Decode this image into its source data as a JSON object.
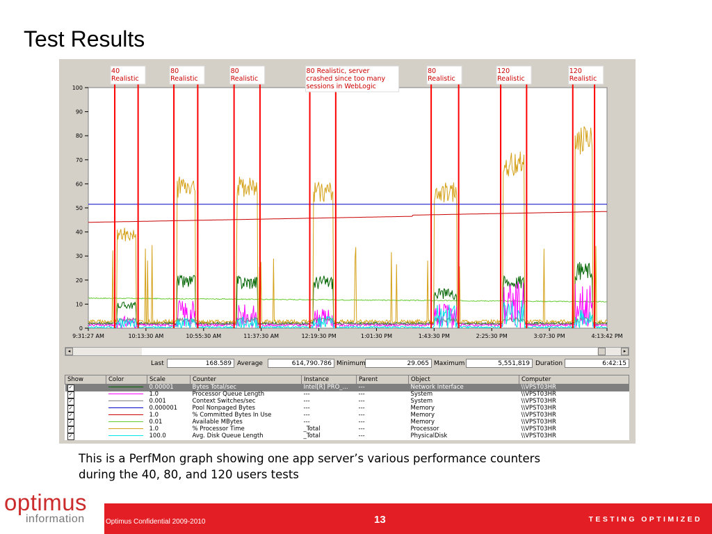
{
  "slide": {
    "title": "Test Results",
    "caption_line1": "This is a PerfMon graph showing one app server’s various performance counters",
    "caption_line2": "during the 40, 80, and 120 users tests"
  },
  "footer": {
    "logo_line1": "optimus",
    "logo_line2": "information",
    "confidential": "Optimus Confidential 2009-2010",
    "page": "13",
    "tagline": "TESTING OPTIMIZED",
    "bar_color": "#e31f25",
    "logo_color": "#cc2b2b"
  },
  "chart_data": {
    "type": "line",
    "ylim": [
      0,
      100
    ],
    "yticks": [
      0,
      10,
      20,
      30,
      40,
      50,
      60,
      70,
      80,
      90,
      100
    ],
    "xticks": [
      "9:31:27 AM",
      "10:13:30 AM",
      "10:55:30 AM",
      "11:37:30 AM",
      "12:19:30 PM",
      "1:01:30 PM",
      "1:43:30 PM",
      "2:25:30 PM",
      "3:07:30 PM",
      "4:13:42 PM"
    ],
    "annotations": [
      {
        "text": "40\nRealistic"
      },
      {
        "text": "80\nRealistic"
      },
      {
        "text": "80\nRealistic"
      },
      {
        "text": "80 Realistic, server\ncrashed since too many\nsessions in WebLogic"
      },
      {
        "text": "80\nRealistic"
      },
      {
        "text": "120\nRealistic"
      },
      {
        "text": "120\nRealistic"
      }
    ],
    "marker_pairs": [
      [
        0.051,
        0.096
      ],
      [
        0.165,
        0.211
      ],
      [
        0.281,
        0.331
      ],
      [
        0.427,
        0.477
      ],
      [
        0.661,
        0.714
      ],
      [
        0.795,
        0.845
      ],
      [
        0.934,
        0.976
      ]
    ],
    "test_windows": [
      [
        0.055,
        0.092
      ],
      [
        0.171,
        0.206
      ],
      [
        0.287,
        0.326
      ],
      [
        0.433,
        0.472
      ],
      [
        0.667,
        0.71
      ],
      [
        0.8,
        0.84
      ],
      [
        0.938,
        0.972
      ]
    ],
    "peaks": {
      "processor": [
        40,
        60,
        60,
        58,
        58,
        70,
        80
      ],
      "threads": [
        10,
        20,
        20,
        20,
        15,
        20,
        25
      ],
      "context": [
        5,
        12,
        10,
        8,
        10,
        20,
        20
      ],
      "disk": [
        4,
        5,
        5,
        5,
        10,
        12,
        8
      ]
    },
    "x_start_time": "9:31:27 AM",
    "x_end_time": "4:13:42 PM",
    "series": [
      {
        "name": "Bytes Total/sec",
        "color": "#006400"
      },
      {
        "name": "Processor Queue Length",
        "color": "#ff00ff"
      },
      {
        "name": "Context Switches/sec",
        "color": "#808080"
      },
      {
        "name": "Pool Nonpaged Bytes",
        "color": "#0000cc"
      },
      {
        "name": "% Committed Bytes In Use",
        "color": "#cc0000"
      },
      {
        "name": "Available MBytes",
        "color": "#66cc33"
      },
      {
        "name": "% Processor Time",
        "color": "#d4a017"
      },
      {
        "name": "Avg. Disk Queue Length",
        "color": "#00e5e5"
      }
    ],
    "levels": {
      "pool_nonpaged": 51.5,
      "available_start": 12.5,
      "available_end": 11,
      "committed_start": 44,
      "committed_end": 48.5,
      "committed_jump_at": 0.625
    },
    "stats": {
      "last_label": "Last",
      "last": "168.589",
      "average_label": "Average",
      "average": "614,790.786",
      "minimum_label": "Minimum",
      "minimum": "29.065",
      "maximum_label": "Maximum",
      "maximum": "5,551,819",
      "duration_label": "Duration",
      "duration": "6:42:15"
    },
    "table": {
      "headers": [
        "Show",
        "Color",
        "Scale",
        "Counter",
        "Instance",
        "Parent",
        "Object",
        "Computer"
      ],
      "rows": [
        {
          "scale": "0.00001",
          "counter": "Bytes Total/sec",
          "instance": "Intel[R] PRO_...",
          "parent": "---",
          "object": "Network Interface",
          "computer": "\\\\VPST03HR",
          "color": "#006400"
        },
        {
          "scale": "1.0",
          "counter": "Processor Queue Length",
          "instance": "---",
          "parent": "---",
          "object": "System",
          "computer": "\\\\VPST03HR",
          "color": "#ff00ff"
        },
        {
          "scale": "0.001",
          "counter": "Context Switches/sec",
          "instance": "---",
          "parent": "---",
          "object": "System",
          "computer": "\\\\VPST03HR",
          "color": "#808080"
        },
        {
          "scale": "0.000001",
          "counter": "Pool Nonpaged Bytes",
          "instance": "---",
          "parent": "---",
          "object": "Memory",
          "computer": "\\\\VPST03HR",
          "color": "#0000cc"
        },
        {
          "scale": "1.0",
          "counter": "% Committed Bytes In Use",
          "instance": "---",
          "parent": "---",
          "object": "Memory",
          "computer": "\\\\VPST03HR",
          "color": "#cc0000"
        },
        {
          "scale": "0.01",
          "counter": "Available MBytes",
          "instance": "---",
          "parent": "---",
          "object": "Memory",
          "computer": "\\\\VPST03HR",
          "color": "#66cc33"
        },
        {
          "scale": "1.0",
          "counter": "% Processor Time",
          "instance": "_Total",
          "parent": "---",
          "object": "Processor",
          "computer": "\\\\VPST03HR",
          "color": "#d4a017"
        },
        {
          "scale": "100.0",
          "counter": "Avg. Disk Queue Length",
          "instance": "_Total",
          "parent": "---",
          "object": "PhysicalDisk",
          "computer": "\\\\VPST03HR",
          "color": "#00e5e5"
        }
      ]
    }
  }
}
